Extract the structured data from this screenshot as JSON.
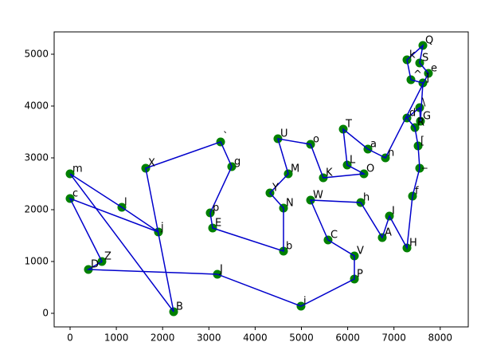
{
  "chart_data": {
    "type": "scatter",
    "labels": [
      "m",
      "l",
      "j",
      "c",
      "Z",
      "D",
      "J",
      "i",
      "P",
      "V",
      "C",
      "W",
      "h",
      "A",
      "I",
      "H",
      "f",
      "_",
      "[",
      "R",
      "d",
      "\\",
      "G",
      "]",
      "^",
      "k",
      "Q",
      "S",
      "e",
      "n",
      "a",
      "T",
      "L",
      "O",
      "K",
      "o",
      "U",
      "M",
      "Y",
      "N",
      "b",
      "E",
      "p",
      "g",
      "`",
      "X",
      "B"
    ],
    "x": [
      0,
      1119,
      1910,
      0,
      688,
      396,
      3184,
      4991,
      6145,
      6145,
      5576,
      5198,
      6282,
      6747,
      6902,
      7281,
      7401,
      7556,
      7522,
      7453,
      7281,
      7556,
      7573,
      7625,
      7367,
      7281,
      7625,
      7556,
      7745,
      6816,
      6437,
      5904,
      5990,
      6351,
      5473,
      5198,
      4492,
      4716,
      4320,
      4613,
      4613,
      3081,
      3029,
      3494,
      3254,
      1635,
      2238
    ],
    "y": [
      2692,
      2046,
      1569,
      2215,
      1000,
      846,
      754,
      138,
      662,
      1108,
      1415,
      2185,
      2138,
      1462,
      1877,
      1262,
      2262,
      2800,
      3231,
      3585,
      3769,
      3969,
      3708,
      4446,
      4508,
      4892,
      5169,
      4831,
      4631,
      3000,
      3169,
      3554,
      2862,
      2692,
      2615,
      3262,
      3369,
      2692,
      2323,
      2031,
      1200,
      1646,
      1938,
      2831,
      3308,
      2800,
      31
    ],
    "marker_color": "#008000",
    "line_color": "#0000cc",
    "closed": true,
    "xlim": [
      -344,
      8606
    ],
    "ylim": [
      -262,
      5431
    ],
    "xticks": [
      0,
      1000,
      2000,
      3000,
      4000,
      5000,
      6000,
      7000,
      8000
    ],
    "yticks": [
      0,
      1000,
      2000,
      3000,
      4000,
      5000
    ]
  }
}
